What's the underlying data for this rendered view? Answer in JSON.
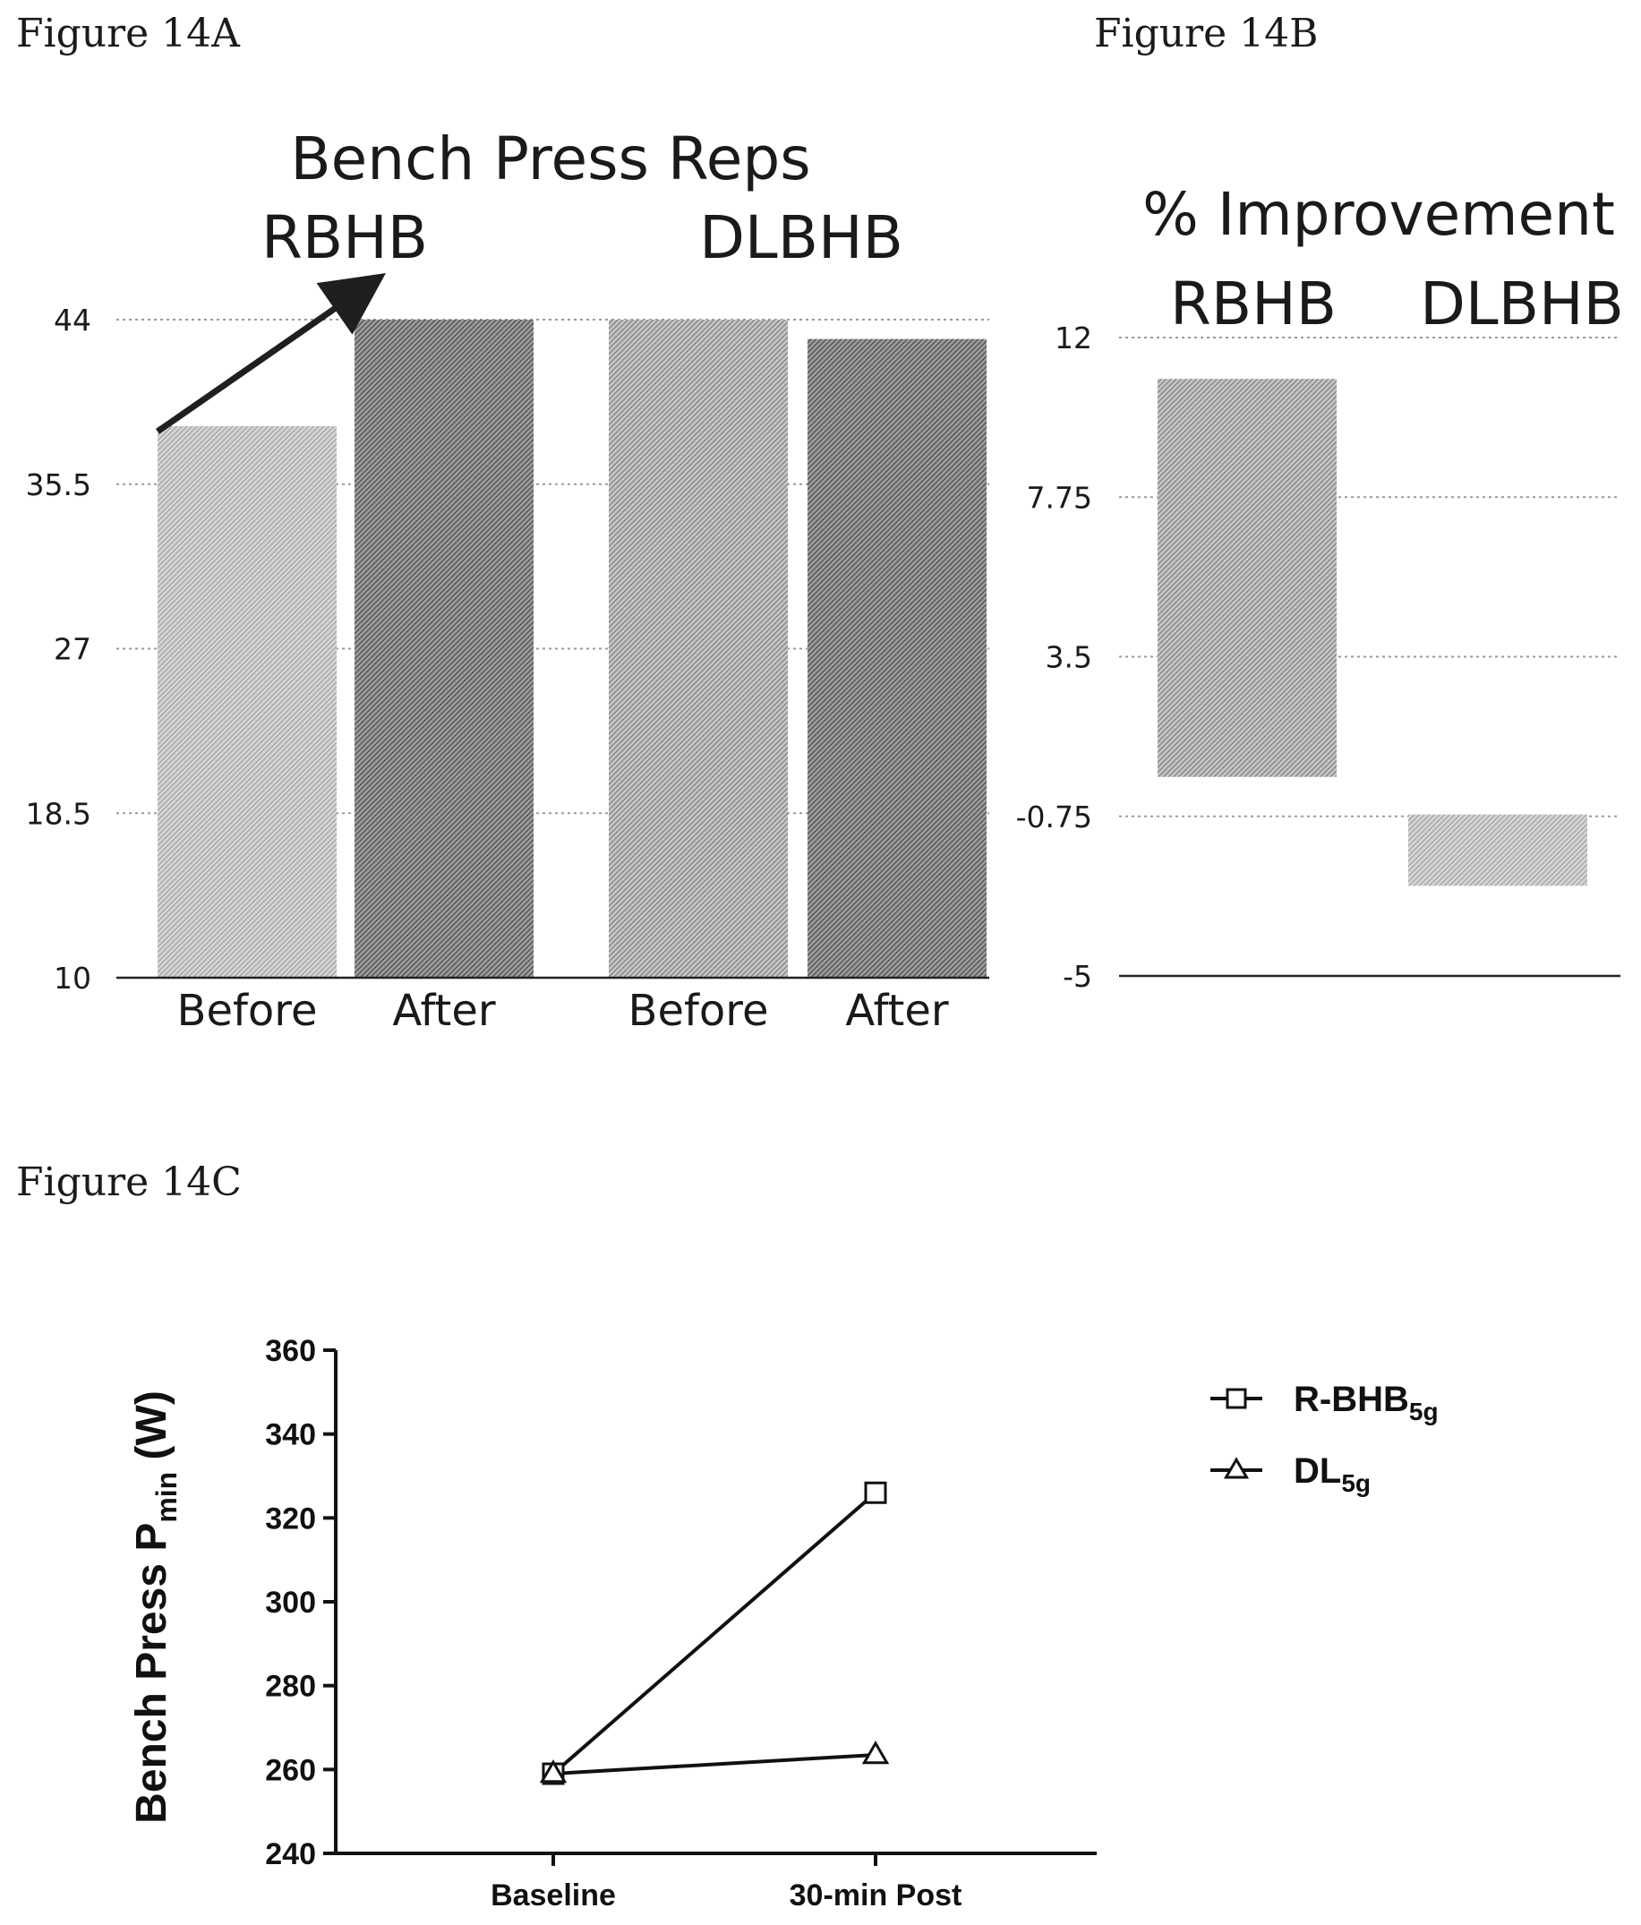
{
  "figure_labels": {
    "a": "Figure 14A",
    "b": "Figure 14B",
    "c": "Figure 14C"
  },
  "chart_data": [
    {
      "id": "14A",
      "type": "bar",
      "title": "Bench Press Reps",
      "group_labels": [
        "RBHB",
        "DLBHB"
      ],
      "categories": [
        "Before",
        "After",
        "Before",
        "After"
      ],
      "values": [
        38.5,
        44,
        44,
        43
      ],
      "yticks": [
        "10",
        "18.5",
        "27",
        "35.5",
        "44"
      ],
      "ylim": [
        10,
        44
      ],
      "grid": true,
      "arrow": "from RBHB Before bar to RBHB After bar",
      "colors": [
        "#bdbdbd",
        "#6e6e6e",
        "#a3a3a3",
        "#707070"
      ]
    },
    {
      "id": "14B",
      "type": "bar",
      "title": "% Improvement",
      "categories": [
        "RBHB",
        "DLBHB"
      ],
      "values": [
        10.9,
        -2.6
      ],
      "bar_bottoms": [
        0.3,
        -0.7
      ],
      "yticks": [
        "-5",
        "-0.75",
        "3.5",
        "7.75",
        "12"
      ],
      "ylim": [
        -5,
        12
      ],
      "grid": true,
      "colors": [
        "#9c9c9c",
        "#b3b3b3"
      ]
    },
    {
      "id": "14C",
      "type": "line",
      "ylabel": "Bench Press P",
      "ylabel_sub": "min",
      "ylabel_unit": " (W)",
      "categories": [
        "Baseline",
        "30-min Post"
      ],
      "yticks": [
        "240",
        "260",
        "280",
        "300",
        "320",
        "340",
        "360"
      ],
      "ylim": [
        240,
        360
      ],
      "series": [
        {
          "name": "R-BHB",
          "name_sub": "5g",
          "marker": "square",
          "values": [
            259,
            326
          ]
        },
        {
          "name": "DL",
          "name_sub": "5g",
          "marker": "triangle",
          "values": [
            259,
            263.5
          ]
        }
      ],
      "legend": "right"
    }
  ]
}
